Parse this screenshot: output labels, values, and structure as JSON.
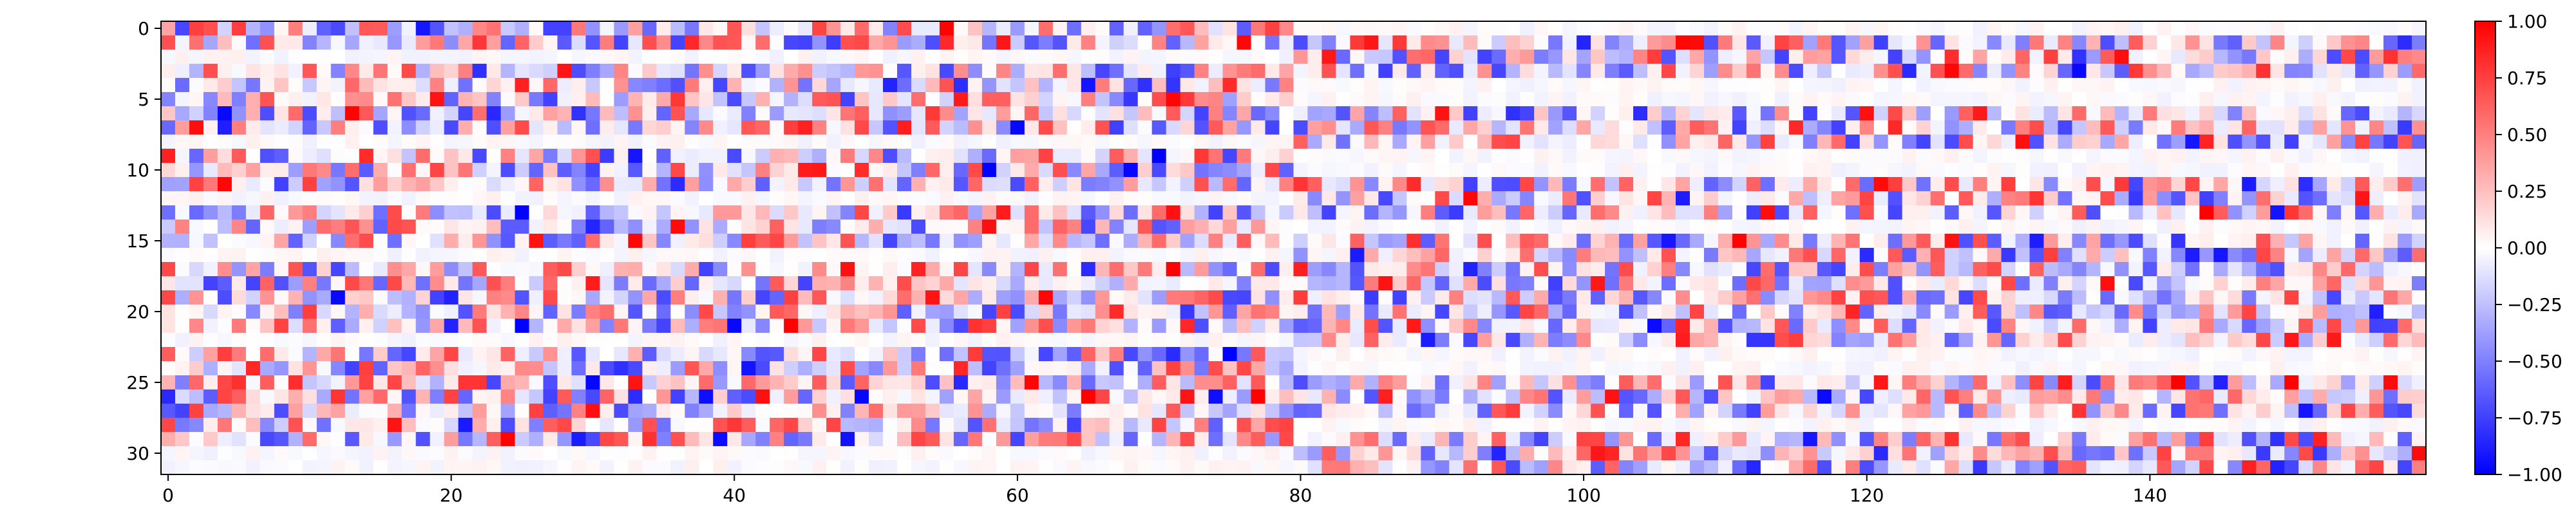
{
  "chart_data": {
    "type": "heatmap",
    "title": "",
    "xlabel": "",
    "ylabel": "",
    "n_rows": 32,
    "n_cols": 160,
    "xlim": [
      -0.5,
      159.5
    ],
    "ylim": [
      31.5,
      -0.5
    ],
    "x_ticks": [
      0,
      20,
      40,
      60,
      80,
      100,
      120,
      140
    ],
    "y_ticks": [
      0,
      5,
      10,
      15,
      20,
      25,
      30
    ],
    "colormap": "bwr",
    "vmin": -1.0,
    "vmax": 1.0,
    "colorbar_ticks": [
      {
        "value": 1.0,
        "label": "1.00"
      },
      {
        "value": 0.75,
        "label": "0.75"
      },
      {
        "value": 0.5,
        "label": "0.50"
      },
      {
        "value": 0.25,
        "label": "0.25"
      },
      {
        "value": 0.0,
        "label": "0.00"
      },
      {
        "value": -0.25,
        "label": "−0.25"
      },
      {
        "value": -0.5,
        "label": "−0.50"
      },
      {
        "value": -0.75,
        "label": "−0.75"
      },
      {
        "value": -1.0,
        "label": "−1.00"
      }
    ],
    "colors": {
      "low": "#0000ff",
      "mid": "#ffffff",
      "high": "#ff0000"
    },
    "active_rows_left": [
      0,
      1,
      3,
      4,
      5,
      6,
      7,
      9,
      10,
      11,
      13,
      14,
      15,
      17,
      18,
      19,
      20,
      21,
      23,
      24,
      25,
      26,
      27,
      28,
      29
    ],
    "active_rows_right": [
      1,
      2,
      3,
      6,
      7,
      8,
      11,
      12,
      13,
      15,
      16,
      17,
      18,
      19,
      20,
      21,
      22,
      25,
      26,
      27,
      29,
      30,
      31
    ],
    "grid": false,
    "legend": "none"
  }
}
